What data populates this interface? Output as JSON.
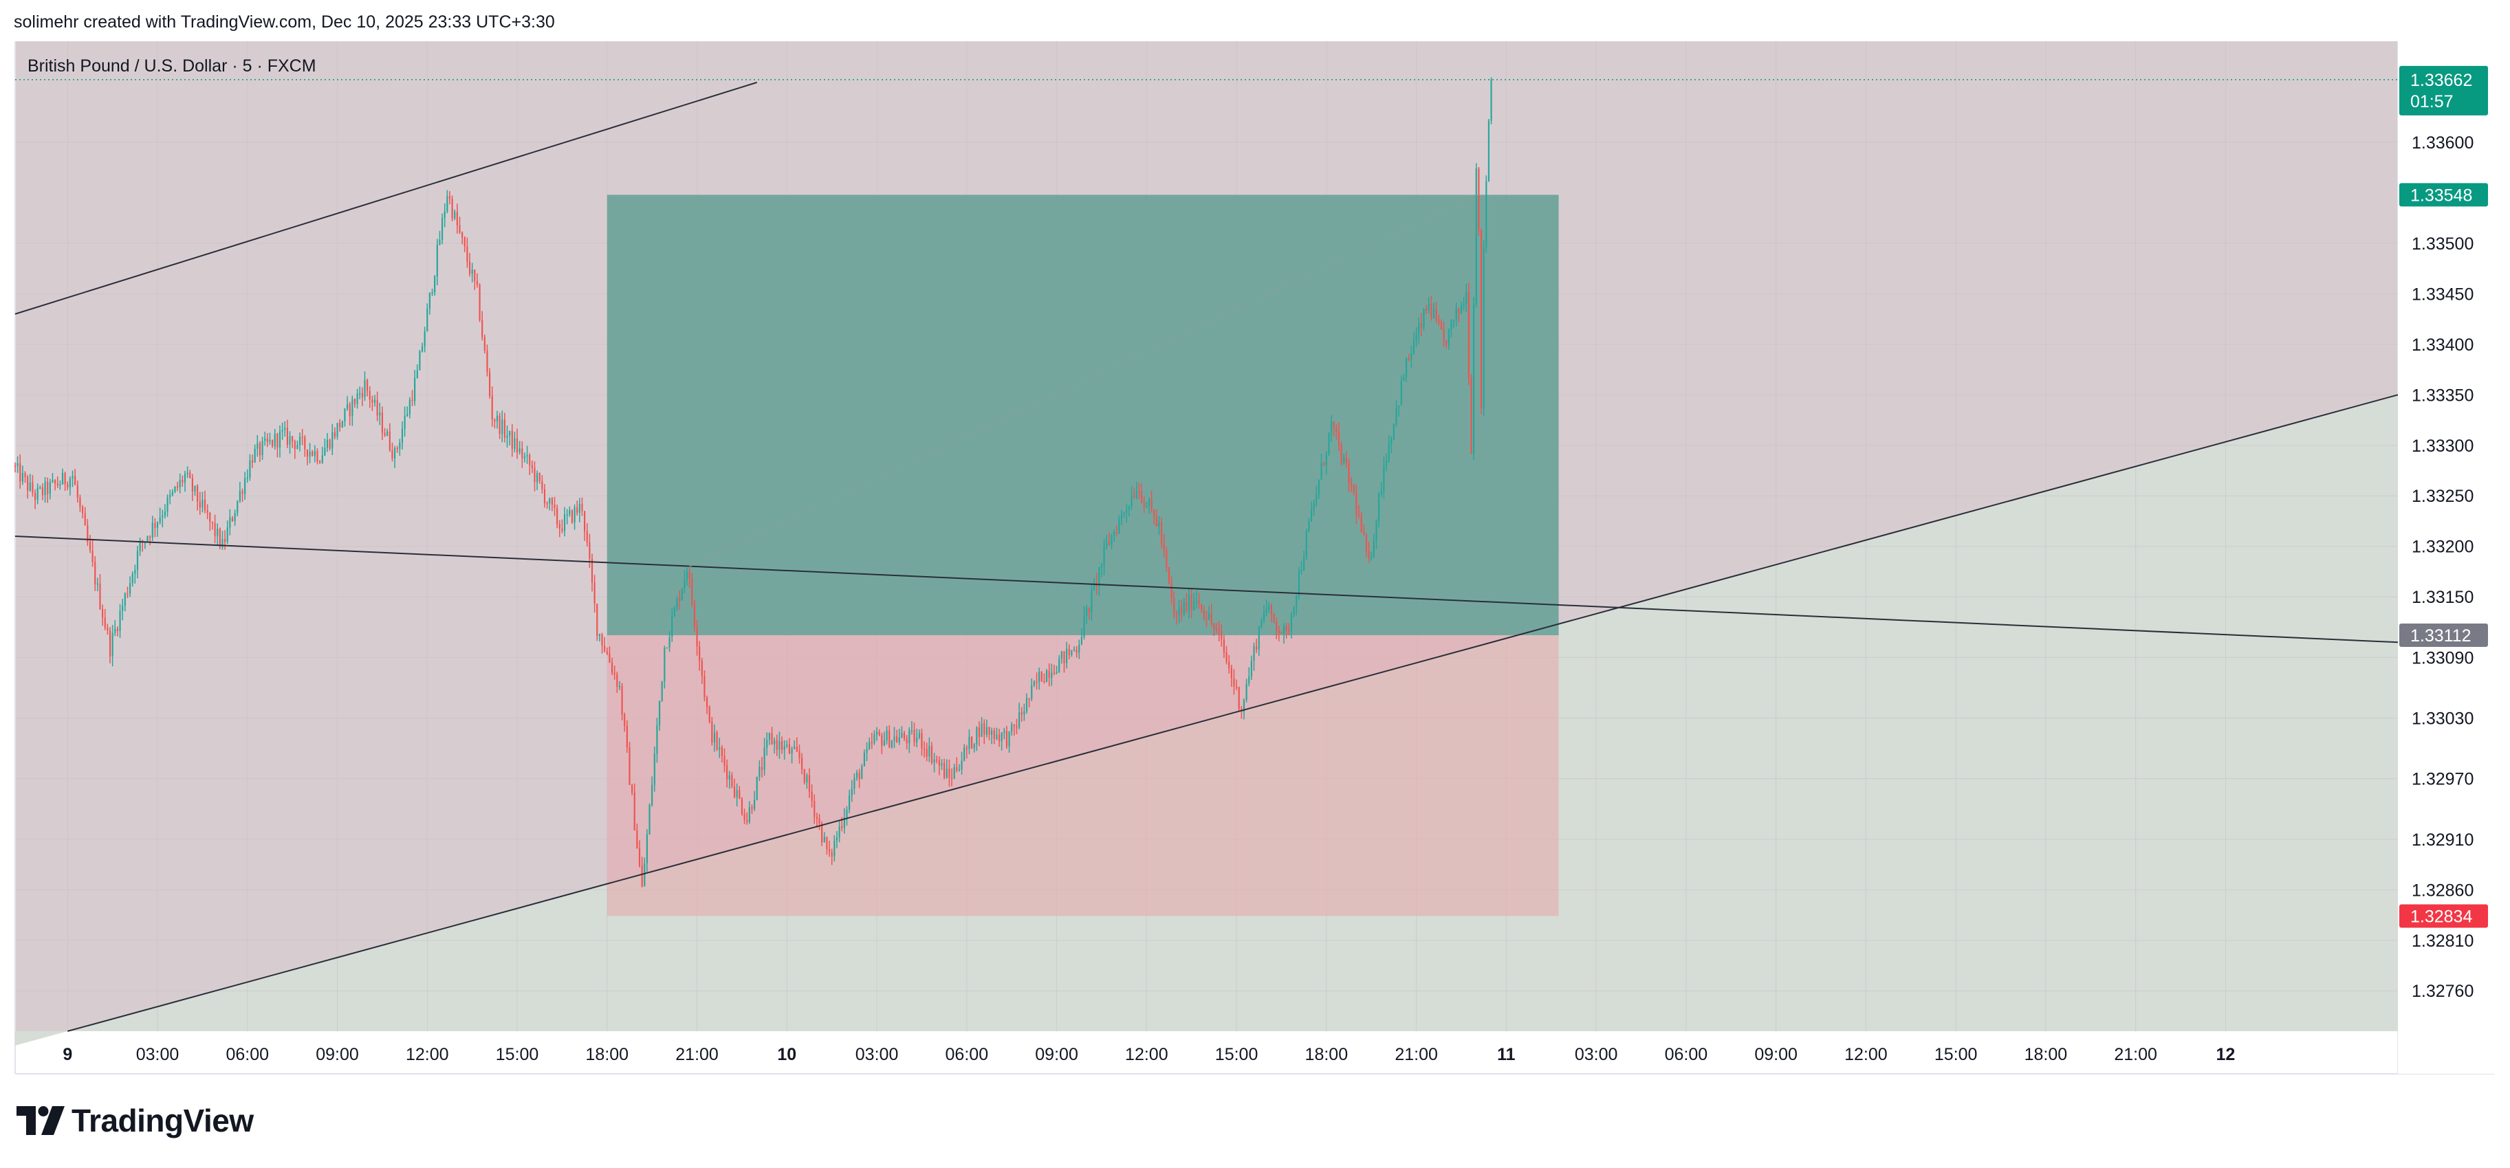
{
  "header": {
    "attribution": "solimehr created with TradingView.com, Dec 10, 2025 23:33 UTC+3:30"
  },
  "brand": {
    "name": "TradingView",
    "logo_icon": "tradingview-logo-icon"
  },
  "colors": {
    "up": "#26a69a",
    "down": "#ef5350",
    "target_zone": "#5f9e92",
    "stop_zone": "#e8a5ab",
    "last_price": "#089981",
    "stop_label": "#f23645",
    "entry_label": "#787b86"
  },
  "chart_data": {
    "type": "candlestick",
    "symbol": "British Pound / U.S. Dollar · 5 · FXCM",
    "interval": "5 minutes",
    "x_range": [
      "2025-12-08 22:15",
      "2025-12-12 05:45"
    ],
    "y_range": [
      1.3272,
      1.337
    ],
    "y_ticks": [
      "1.33600",
      "1.33500",
      "1.33450",
      "1.33400",
      "1.33350",
      "1.33300",
      "1.33250",
      "1.33200",
      "1.33150",
      "1.33090",
      "1.33030",
      "1.32970",
      "1.32910",
      "1.32860",
      "1.32810",
      "1.32760"
    ],
    "x_ticks": [
      {
        "label": "9",
        "t": "2025-12-09 00:00",
        "bold": true
      },
      {
        "label": "03:00",
        "t": "2025-12-09 03:00"
      },
      {
        "label": "06:00",
        "t": "2025-12-09 06:00"
      },
      {
        "label": "09:00",
        "t": "2025-12-09 09:00"
      },
      {
        "label": "12:00",
        "t": "2025-12-09 12:00"
      },
      {
        "label": "15:00",
        "t": "2025-12-09 15:00"
      },
      {
        "label": "18:00",
        "t": "2025-12-09 18:00"
      },
      {
        "label": "21:00",
        "t": "2025-12-09 21:00"
      },
      {
        "label": "10",
        "t": "2025-12-10 00:00",
        "bold": true
      },
      {
        "label": "03:00",
        "t": "2025-12-10 03:00"
      },
      {
        "label": "06:00",
        "t": "2025-12-10 06:00"
      },
      {
        "label": "09:00",
        "t": "2025-12-10 09:00"
      },
      {
        "label": "12:00",
        "t": "2025-12-10 12:00"
      },
      {
        "label": "15:00",
        "t": "2025-12-10 15:00"
      },
      {
        "label": "18:00",
        "t": "2025-12-10 18:00"
      },
      {
        "label": "21:00",
        "t": "2025-12-10 21:00"
      },
      {
        "label": "11",
        "t": "2025-12-11 00:00",
        "bold": true
      },
      {
        "label": "03:00",
        "t": "2025-12-11 03:00"
      },
      {
        "label": "06:00",
        "t": "2025-12-11 06:00"
      },
      {
        "label": "09:00",
        "t": "2025-12-11 09:00"
      },
      {
        "label": "12:00",
        "t": "2025-12-11 12:00"
      },
      {
        "label": "15:00",
        "t": "2025-12-11 15:00"
      },
      {
        "label": "18:00",
        "t": "2025-12-11 18:00"
      },
      {
        "label": "21:00",
        "t": "2025-12-11 21:00"
      },
      {
        "label": "12",
        "t": "2025-12-12 00:00",
        "bold": true
      }
    ],
    "last_price": {
      "value": 1.33662,
      "label": "1.33662",
      "countdown": "01:57"
    },
    "price_labels": [
      {
        "name": "target",
        "value": 1.33548,
        "label": "1.33548"
      },
      {
        "name": "entry",
        "value": 1.33112,
        "label": "1.33112"
      },
      {
        "name": "stop",
        "value": 1.32834,
        "label": "1.32834"
      }
    ],
    "long_position": {
      "start": "2025-12-09 18:00",
      "end": "2025-12-11 01:45",
      "entry": 1.33112,
      "target": 1.33548,
      "stop": 1.32834
    },
    "trend_lines": [
      {
        "name": "upper-channel-line",
        "p1": [
          "2025-12-08 22:15",
          1.3343
        ],
        "p2": [
          "2025-12-09 12:30",
          1.33562
        ]
      },
      {
        "name": "lower-channel-line",
        "p1": [
          "2025-12-09 00:00",
          1.3272
        ],
        "p2": [
          "2025-12-12 05:45",
          1.3335
        ]
      },
      {
        "name": "horizontal-resistance-line",
        "p1": [
          "2025-12-08 22:15",
          1.3321
        ],
        "p2": [
          "2025-12-12 05:45",
          1.33105
        ]
      }
    ],
    "key_points": [
      [
        "2025-12-08 22:15",
        1.3328
      ],
      [
        "2025-12-08 23:00",
        1.3325
      ],
      [
        "2025-12-09 00:15",
        1.3327
      ],
      [
        "2025-12-09 01:30",
        1.331
      ],
      [
        "2025-12-09 02:30",
        1.332
      ],
      [
        "2025-12-09 04:00",
        1.3327
      ],
      [
        "2025-12-09 05:15",
        1.332
      ],
      [
        "2025-12-09 06:15",
        1.3329
      ],
      [
        "2025-12-09 07:15",
        1.3331
      ],
      [
        "2025-12-09 08:30",
        1.3329
      ],
      [
        "2025-12-09 10:00",
        1.3336
      ],
      [
        "2025-12-09 11:00",
        1.3329
      ],
      [
        "2025-12-09 11:45",
        1.3337
      ],
      [
        "2025-12-09 12:45",
        1.3355
      ],
      [
        "2025-12-09 13:45",
        1.3345
      ],
      [
        "2025-12-09 14:15",
        1.3333
      ],
      [
        "2025-12-09 15:30",
        1.3328
      ],
      [
        "2025-12-09 16:30",
        1.3322
      ],
      [
        "2025-12-09 17:15",
        1.3324
      ],
      [
        "2025-12-09 17:45",
        1.3312
      ],
      [
        "2025-12-09 18:30",
        1.3306
      ],
      [
        "2025-12-09 19:15",
        1.3286
      ],
      [
        "2025-12-09 20:00",
        1.331
      ],
      [
        "2025-12-09 20:45",
        1.3318
      ],
      [
        "2025-12-09 21:30",
        1.3302
      ],
      [
        "2025-12-09 22:45",
        1.3293
      ],
      [
        "2025-12-09 23:30",
        1.3301
      ],
      [
        "2025-12-10 00:30",
        1.3299
      ],
      [
        "2025-12-10 01:30",
        1.3289
      ],
      [
        "2025-12-10 02:15",
        1.3296
      ],
      [
        "2025-12-10 03:00",
        1.3301
      ],
      [
        "2025-12-10 04:30",
        1.3301
      ],
      [
        "2025-12-10 05:30",
        1.3297
      ],
      [
        "2025-12-10 06:30",
        1.3302
      ],
      [
        "2025-12-10 07:30",
        1.3301
      ],
      [
        "2025-12-10 08:30",
        1.3307
      ],
      [
        "2025-12-10 09:45",
        1.331
      ],
      [
        "2025-12-10 10:45",
        1.332
      ],
      [
        "2025-12-10 11:45",
        1.3326
      ],
      [
        "2025-12-10 12:30",
        1.3322
      ],
      [
        "2025-12-10 13:00",
        1.3313
      ],
      [
        "2025-12-10 13:45",
        1.3315
      ],
      [
        "2025-12-10 14:30",
        1.3311
      ],
      [
        "2025-12-10 15:15",
        1.3304
      ],
      [
        "2025-12-10 16:00",
        1.3314
      ],
      [
        "2025-12-10 16:45",
        1.3311
      ],
      [
        "2025-12-10 17:30",
        1.3322
      ],
      [
        "2025-12-10 18:15",
        1.3332
      ],
      [
        "2025-12-10 19:00",
        1.3325
      ],
      [
        "2025-12-10 19:30",
        1.3318
      ],
      [
        "2025-12-10 20:00",
        1.3328
      ],
      [
        "2025-12-10 20:45",
        1.3338
      ],
      [
        "2025-12-10 21:30",
        1.3344
      ],
      [
        "2025-12-10 22:00",
        1.334
      ],
      [
        "2025-12-10 22:45",
        1.3345
      ],
      [
        "2025-12-10 22:55",
        1.333
      ],
      [
        "2025-12-10 23:05",
        1.3358
      ],
      [
        "2025-12-10 23:10",
        1.3352
      ],
      [
        "2025-12-10 23:15",
        1.3333
      ],
      [
        "2025-12-10 23:20",
        1.335
      ],
      [
        "2025-12-10 23:33",
        1.33662
      ]
    ]
  }
}
